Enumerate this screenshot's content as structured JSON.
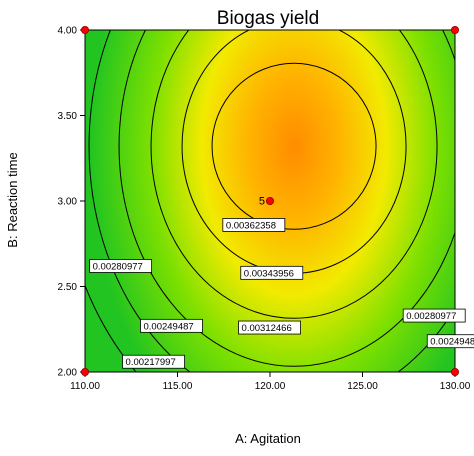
{
  "chart_data": {
    "type": "heatmap",
    "subtype": "response-surface contour plot",
    "title": "Biogas yield",
    "xlabel": "A: Agitation",
    "ylabel": "B: Reaction time",
    "xlim": [
      110,
      130
    ],
    "ylim": [
      2.0,
      4.0
    ],
    "x_ticks": [
      "110.00",
      "115.00",
      "120.00",
      "125.00",
      "130.00"
    ],
    "y_ticks": [
      "2.00",
      "2.50",
      "3.00",
      "3.50",
      "4.00"
    ],
    "colormap": [
      "#21c421",
      "#7de000",
      "#f2ea00",
      "#ffb300",
      "#ff8c00"
    ],
    "contour_line_color": "#000000",
    "center": {
      "x": 121.3,
      "y": 3.32
    },
    "contours": [
      {
        "level": "0.00217997",
        "labels": [
          {
            "x": 112.03,
            "y": 2.06
          }
        ]
      },
      {
        "level": "0.00249487",
        "labels": [
          {
            "x": 113.0,
            "y": 2.27
          },
          {
            "x": 128.5,
            "y": 2.18
          }
        ]
      },
      {
        "level": "0.00280977",
        "labels": [
          {
            "x": 110.25,
            "y": 2.62
          },
          {
            "x": 127.2,
            "y": 2.33
          }
        ]
      },
      {
        "level": "0.00312466",
        "labels": [
          {
            "x": 118.3,
            "y": 2.26
          }
        ]
      },
      {
        "level": "0.00343956",
        "labels": [
          {
            "x": 118.42,
            "y": 2.58
          }
        ]
      },
      {
        "level": "0.00362358",
        "labels": [
          {
            "x": 117.45,
            "y": 2.86
          }
        ]
      }
    ],
    "design_points": [
      {
        "x": 110,
        "y": 2.0
      },
      {
        "x": 130,
        "y": 2.0
      },
      {
        "x": 110,
        "y": 4.0
      },
      {
        "x": 130,
        "y": 4.0
      },
      {
        "x": 120,
        "y": 3.0,
        "label": "5"
      }
    ],
    "design_point_color": "#ff0000"
  }
}
